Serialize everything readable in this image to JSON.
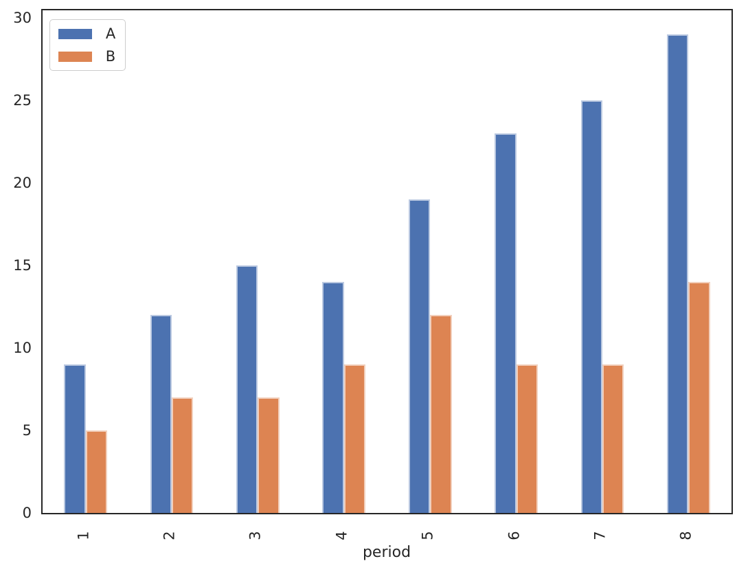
{
  "chart_data": {
    "type": "bar",
    "title": "",
    "xlabel": "period",
    "ylabel": "",
    "categories": [
      "1",
      "2",
      "3",
      "4",
      "5",
      "6",
      "7",
      "8"
    ],
    "series": [
      {
        "name": "A",
        "color": "#4C72B0",
        "values": [
          9,
          12,
          15,
          14,
          19,
          23,
          25,
          29
        ]
      },
      {
        "name": "B",
        "color": "#DD8452",
        "values": [
          5,
          7,
          7,
          9,
          12,
          9,
          9,
          14
        ]
      }
    ],
    "ylim": [
      0,
      30.45
    ],
    "yticks": [
      0,
      5,
      10,
      15,
      20,
      25,
      30
    ],
    "grid": false,
    "legend_position": "upper-left",
    "bar_group_width_fraction": 0.5,
    "x_tick_rotation_deg": 90,
    "colors": {
      "spine": "#262626",
      "text": "#262626",
      "legend_border": "#cccccc",
      "background": "#ffffff",
      "bar_edge": "rgba(255,255,255,0.62)"
    }
  }
}
